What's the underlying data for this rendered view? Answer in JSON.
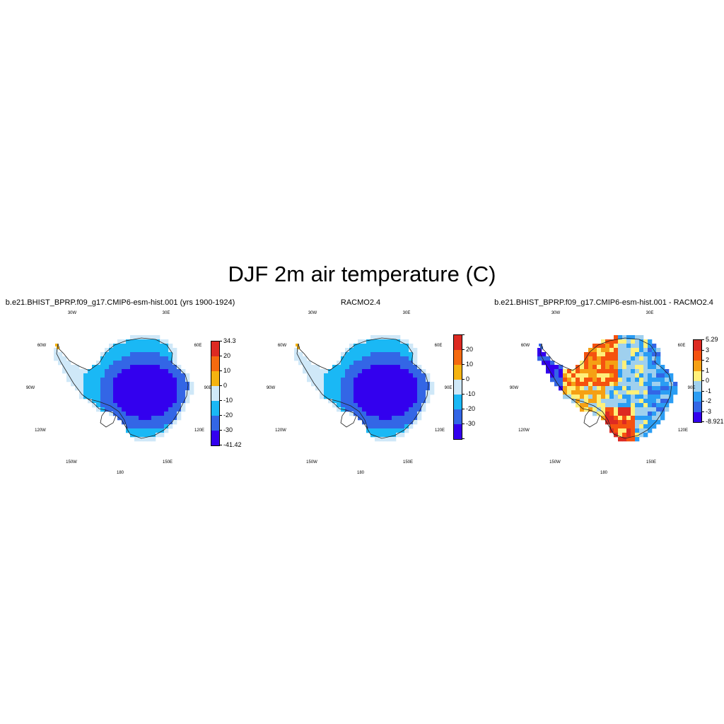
{
  "figure": {
    "title": "DJF 2m air temperature (C)"
  },
  "panels": [
    {
      "title": "b.e21.BHIST_BPRP.f09_g17.CMIP6-esm-hist.001 (yrs 1900-1924)",
      "longitude_labels": [
        "30W",
        "30E",
        "60W",
        "60E",
        "90W",
        "90E",
        "120W",
        "120E",
        "150W",
        "150E",
        "180"
      ],
      "colorbar": {
        "colors": [
          "#3300ee",
          "#3366e6",
          "#1ab8f5",
          "#cfe8f8",
          "#f5b311",
          "#f56a0f",
          "#dd2a22"
        ],
        "labels": [
          "-41.42",
          "-30",
          "-20",
          "-10",
          "0",
          "10",
          "20",
          "34.3"
        ]
      },
      "field": "absolute"
    },
    {
      "title": "RACMO2.4",
      "longitude_labels": [
        "30W",
        "30E",
        "60W",
        "60E",
        "90W",
        "90E",
        "120W",
        "120E",
        "150W",
        "150E",
        "180"
      ],
      "colorbar": {
        "colors": [
          "#3300ee",
          "#3366e6",
          "#1ab8f5",
          "#cfe8f8",
          "#f5b311",
          "#f56a0f",
          "#dd2a22"
        ],
        "labels": [
          "",
          "-30",
          "-20",
          "-10",
          "0",
          "10",
          "20",
          ""
        ]
      },
      "field": "absolute"
    },
    {
      "title": "b.e21.BHIST_BPRP.f09_g17.CMIP6-esm-hist.001 - RACMO2.4",
      "longitude_labels": [
        "30W",
        "30E",
        "60W",
        "60E",
        "90W",
        "90E",
        "120W",
        "120E",
        "150W",
        "150E",
        "180"
      ],
      "colorbar": {
        "colors": [
          "#3300ee",
          "#3366e6",
          "#2a9df4",
          "#9fd0ee",
          "#fff07a",
          "#f5a014",
          "#f5520f",
          "#dd2a22"
        ],
        "labels": [
          "-8.921",
          "-3",
          "-2",
          "-1",
          "0",
          "1",
          "2",
          "3",
          "5.29"
        ]
      },
      "field": "difference"
    }
  ]
}
